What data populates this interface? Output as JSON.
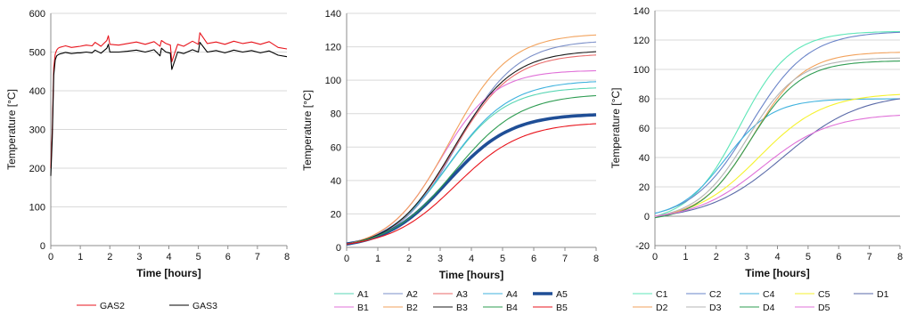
{
  "chart_data": [
    {
      "type": "line",
      "title": "",
      "xlabel": "Time [hours]",
      "ylabel": "Temperature [°C]",
      "xlim": [
        0,
        8
      ],
      "ylim": [
        0,
        600
      ],
      "x_ticks": [
        "0",
        "1",
        "2",
        "3",
        "4",
        "5",
        "6",
        "7",
        "8"
      ],
      "y_ticks": [
        "0",
        "100",
        "200",
        "300",
        "400",
        "500",
        "600"
      ],
      "grid": "horizontal",
      "legend_position": "bottom",
      "series": [
        {
          "name": "GAS2",
          "color": "#e8141c",
          "width": 1.1,
          "x": [
            0,
            0.05,
            0.1,
            0.15,
            0.2,
            0.25,
            0.3,
            0.4,
            0.5,
            0.7,
            0.9,
            1.0,
            1.2,
            1.4,
            1.5,
            1.7,
            1.9,
            1.95,
            2.0,
            2.3,
            2.6,
            2.9,
            3.2,
            3.5,
            3.7,
            3.75,
            3.9,
            4.05,
            4.1,
            4.3,
            4.5,
            4.8,
            5.0,
            5.05,
            5.3,
            5.6,
            5.9,
            6.2,
            6.5,
            6.8,
            7.1,
            7.4,
            7.7,
            8.0
          ],
          "y": [
            200,
            300,
            460,
            495,
            505,
            510,
            512,
            514,
            516,
            512,
            514,
            515,
            518,
            516,
            525,
            515,
            530,
            542,
            520,
            518,
            522,
            526,
            520,
            527,
            515,
            530,
            522,
            518,
            475,
            520,
            515,
            528,
            520,
            550,
            522,
            526,
            520,
            528,
            522,
            526,
            520,
            527,
            512,
            508
          ]
        },
        {
          "name": "GAS3",
          "color": "#000000",
          "width": 1.1,
          "x": [
            0,
            0.05,
            0.1,
            0.15,
            0.2,
            0.25,
            0.3,
            0.4,
            0.5,
            0.7,
            0.9,
            1.0,
            1.2,
            1.4,
            1.5,
            1.7,
            1.9,
            1.95,
            2.0,
            2.3,
            2.6,
            2.9,
            3.2,
            3.5,
            3.7,
            3.75,
            3.9,
            4.05,
            4.1,
            4.3,
            4.5,
            4.8,
            5.0,
            5.05,
            5.3,
            5.6,
            5.9,
            6.2,
            6.5,
            6.8,
            7.1,
            7.4,
            7.7,
            8.0
          ],
          "y": [
            180,
            280,
            440,
            480,
            490,
            493,
            495,
            497,
            499,
            496,
            498,
            498,
            500,
            498,
            505,
            497,
            510,
            520,
            500,
            500,
            502,
            505,
            500,
            506,
            490,
            510,
            500,
            497,
            455,
            500,
            496,
            506,
            500,
            525,
            500,
            504,
            498,
            505,
            500,
            504,
            498,
            503,
            492,
            488
          ]
        }
      ]
    },
    {
      "type": "line",
      "title": "",
      "xlabel": "Time [hours]",
      "ylabel": "Temperature [°C]",
      "xlim": [
        0,
        8
      ],
      "ylim": [
        0,
        140
      ],
      "x_ticks": [
        "0",
        "1",
        "2",
        "3",
        "4",
        "5",
        "6",
        "7",
        "8"
      ],
      "y_ticks": [
        "0",
        "20",
        "40",
        "60",
        "80",
        "100",
        "120",
        "140"
      ],
      "grid": "horizontal",
      "legend_position": "bottom",
      "series": [
        {
          "name": "A1",
          "color": "#5ad6b4",
          "width": 1.1,
          "curve": {
            "base": 2,
            "top": 96,
            "k": 1.05,
            "t0": 3.2
          }
        },
        {
          "name": "A2",
          "color": "#7b8fc8",
          "width": 1.1,
          "curve": {
            "base": 2,
            "top": 124,
            "k": 1.05,
            "t0": 3.55
          }
        },
        {
          "name": "A3",
          "color": "#e96a6a",
          "width": 1.1,
          "curve": {
            "base": 2,
            "top": 116,
            "k": 1.05,
            "t0": 3.4
          }
        },
        {
          "name": "A4",
          "color": "#3fb2de",
          "width": 1.1,
          "curve": {
            "base": 2,
            "top": 100,
            "k": 1.0,
            "t0": 3.25
          }
        },
        {
          "name": "A5",
          "color": "#1f4e96",
          "width": 3.6,
          "curve": {
            "base": 2,
            "top": 80,
            "k": 1.0,
            "t0": 3.25
          }
        },
        {
          "name": "B1",
          "color": "#e070d8",
          "width": 1.1,
          "curve": {
            "base": 2,
            "top": 106,
            "k": 1.15,
            "t0": 3.0
          }
        },
        {
          "name": "B2",
          "color": "#f2a25c",
          "width": 1.1,
          "curve": {
            "base": 2,
            "top": 128,
            "k": 1.05,
            "t0": 3.3
          }
        },
        {
          "name": "B3",
          "color": "#1a1a1a",
          "width": 1.1,
          "curve": {
            "base": 2,
            "top": 118,
            "k": 1.05,
            "t0": 3.4
          }
        },
        {
          "name": "B4",
          "color": "#2e9c52",
          "width": 1.1,
          "curve": {
            "base": 2,
            "top": 92,
            "k": 0.95,
            "t0": 3.45
          }
        },
        {
          "name": "B5",
          "color": "#e8141c",
          "width": 1.1,
          "curve": {
            "base": 2,
            "top": 75,
            "k": 0.95,
            "t0": 3.5
          }
        }
      ]
    },
    {
      "type": "line",
      "title": "",
      "xlabel": "Time [hours]",
      "ylabel": "Temperature [°C]",
      "xlim": [
        0,
        8
      ],
      "ylim": [
        -20,
        140
      ],
      "x_ticks": [
        "0",
        "1",
        "2",
        "3",
        "4",
        "5",
        "6",
        "7",
        "8"
      ],
      "y_ticks": [
        "-20",
        "0",
        "20",
        "40",
        "60",
        "80",
        "100",
        "120",
        "140"
      ],
      "grid": "horizontal",
      "legend_position": "bottom",
      "series": [
        {
          "name": "C1",
          "color": "#5ee6b8",
          "width": 1.1,
          "curve": {
            "base": 0,
            "top": 126,
            "k": 1.2,
            "t0": 2.75
          }
        },
        {
          "name": "C2",
          "color": "#6a84c8",
          "width": 1.1,
          "curve": {
            "base": 2,
            "top": 126,
            "k": 1.05,
            "t0": 3.1
          }
        },
        {
          "name": "C4",
          "color": "#3fb2de",
          "width": 1.1,
          "curve": {
            "base": 2,
            "top": 80,
            "k": 1.3,
            "t0": 2.3
          }
        },
        {
          "name": "C5",
          "color": "#f5f22e",
          "width": 1.1,
          "curve": {
            "base": 0,
            "top": 84,
            "k": 0.95,
            "t0": 3.4
          }
        },
        {
          "name": "D1",
          "color": "#5a6aa8",
          "width": 1.1,
          "curve": {
            "base": 0,
            "top": 84,
            "k": 0.8,
            "t0": 4.2
          }
        },
        {
          "name": "D2",
          "color": "#f2a25c",
          "width": 1.1,
          "curve": {
            "base": 0,
            "top": 112,
            "k": 1.2,
            "t0": 3.2
          }
        },
        {
          "name": "D3",
          "color": "#b4b4b4",
          "width": 1.1,
          "curve": {
            "base": 0,
            "top": 108,
            "k": 1.2,
            "t0": 3.0
          }
        },
        {
          "name": "D4",
          "color": "#2e9c52",
          "width": 1.1,
          "curve": {
            "base": -1,
            "top": 106,
            "k": 1.2,
            "t0": 3.1
          }
        },
        {
          "name": "D5",
          "color": "#e070d8",
          "width": 1.1,
          "curve": {
            "base": 0,
            "top": 70,
            "k": 0.9,
            "t0": 3.5
          }
        }
      ]
    }
  ]
}
